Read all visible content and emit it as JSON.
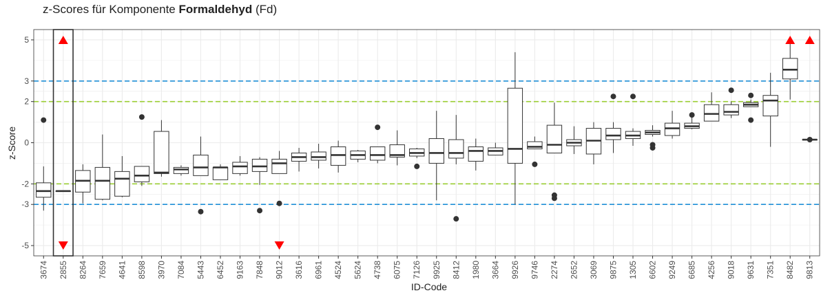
{
  "chart_data": {
    "type": "boxplot",
    "title_prefix": "z-Scores für Komponente ",
    "title_bold": "Formaldehyd",
    "title_suffix": " (Fd)",
    "xlabel": "ID-Code",
    "ylabel": "z-Score",
    "ylim": [
      -5.5,
      5.5
    ],
    "yticks": [
      -5,
      -3,
      -2,
      0,
      2,
      3,
      5
    ],
    "grid": true,
    "reference_lines": [
      {
        "value": 3,
        "color": "#1f8fd6"
      },
      {
        "value": -3,
        "color": "#1f8fd6"
      },
      {
        "value": 2,
        "color": "#9acd32"
      },
      {
        "value": -2,
        "color": "#9acd32"
      }
    ],
    "highlight_category": "2855",
    "colors": {
      "box": "#333333",
      "outlier": "#333333",
      "off_scale_marker": "#ff0000",
      "grid": "#ebebeb",
      "panel_border": "#333333"
    },
    "boxes": [
      {
        "id": "3674",
        "whisker_low": -3.3,
        "q1": -2.65,
        "median": -2.35,
        "q3": -1.95,
        "whisker_high": -1.15,
        "outliers": [
          1.1
        ],
        "off_scale": []
      },
      {
        "id": "2855",
        "whisker_low": -2.35,
        "q1": -2.35,
        "median": -2.35,
        "q3": -2.35,
        "whisker_high": -2.35,
        "outliers": [],
        "off_scale": [
          "up",
          "down"
        ]
      },
      {
        "id": "8264",
        "whisker_low": -2.95,
        "q1": -2.4,
        "median": -1.85,
        "q3": -1.35,
        "whisker_high": -1.05,
        "outliers": [],
        "off_scale": []
      },
      {
        "id": "7659",
        "whisker_low": -2.8,
        "q1": -2.75,
        "median": -1.85,
        "q3": -1.2,
        "whisker_high": 0.4,
        "outliers": [],
        "off_scale": []
      },
      {
        "id": "4641",
        "whisker_low": -2.65,
        "q1": -2.6,
        "median": -1.75,
        "q3": -1.4,
        "whisker_high": -0.65,
        "outliers": [],
        "off_scale": []
      },
      {
        "id": "8598",
        "whisker_low": -2.1,
        "q1": -1.9,
        "median": -1.6,
        "q3": -1.15,
        "whisker_high": -1.15,
        "outliers": [
          1.25
        ],
        "off_scale": []
      },
      {
        "id": "3970",
        "whisker_low": -1.65,
        "q1": -1.5,
        "median": -1.45,
        "q3": 0.55,
        "whisker_high": 1.1,
        "outliers": [],
        "off_scale": []
      },
      {
        "id": "7084",
        "whisker_low": -1.6,
        "q1": -1.5,
        "median": -1.3,
        "q3": -1.2,
        "whisker_high": -1.1,
        "outliers": [],
        "off_scale": []
      },
      {
        "id": "5443",
        "whisker_low": -1.6,
        "q1": -1.6,
        "median": -1.2,
        "q3": -0.6,
        "whisker_high": 0.3,
        "outliers": [
          -3.35
        ],
        "off_scale": []
      },
      {
        "id": "6452",
        "whisker_low": -1.8,
        "q1": -1.8,
        "median": -1.2,
        "q3": -1.2,
        "whisker_high": -1.05,
        "outliers": [],
        "off_scale": []
      },
      {
        "id": "9163",
        "whisker_low": -1.6,
        "q1": -1.5,
        "median": -1.15,
        "q3": -0.95,
        "whisker_high": -0.65,
        "outliers": [],
        "off_scale": []
      },
      {
        "id": "7848",
        "whisker_low": -2.05,
        "q1": -1.4,
        "median": -1.15,
        "q3": -0.8,
        "whisker_high": -0.7,
        "outliers": [
          -3.3
        ],
        "off_scale": []
      },
      {
        "id": "9012",
        "whisker_low": -1.5,
        "q1": -1.5,
        "median": -1.0,
        "q3": -0.8,
        "whisker_high": -0.4,
        "outliers": [
          -2.95
        ],
        "off_scale": [
          "down"
        ]
      },
      {
        "id": "3616",
        "whisker_low": -1.4,
        "q1": -0.9,
        "median": -0.7,
        "q3": -0.5,
        "whisker_high": -0.25,
        "outliers": [],
        "off_scale": []
      },
      {
        "id": "6961",
        "whisker_low": -1.25,
        "q1": -0.85,
        "median": -0.7,
        "q3": -0.45,
        "whisker_high": -0.05,
        "outliers": [],
        "off_scale": []
      },
      {
        "id": "4524",
        "whisker_low": -1.45,
        "q1": -1.1,
        "median": -0.6,
        "q3": -0.2,
        "whisker_high": 0.1,
        "outliers": [],
        "off_scale": []
      },
      {
        "id": "5624",
        "whisker_low": -0.95,
        "q1": -0.8,
        "median": -0.6,
        "q3": -0.4,
        "whisker_high": -0.35,
        "outliers": [],
        "off_scale": []
      },
      {
        "id": "4738",
        "whisker_low": -1.0,
        "q1": -0.85,
        "median": -0.6,
        "q3": -0.2,
        "whisker_high": -0.2,
        "outliers": [
          0.75
        ],
        "off_scale": []
      },
      {
        "id": "6075",
        "whisker_low": -1.1,
        "q1": -0.7,
        "median": -0.6,
        "q3": -0.1,
        "whisker_high": 0.6,
        "outliers": [],
        "off_scale": []
      },
      {
        "id": "7126",
        "whisker_low": -0.75,
        "q1": -0.65,
        "median": -0.5,
        "q3": -0.3,
        "whisker_high": -0.25,
        "outliers": [
          -1.15
        ],
        "off_scale": []
      },
      {
        "id": "9925",
        "whisker_low": -2.8,
        "q1": -1.0,
        "median": -0.5,
        "q3": 0.2,
        "whisker_high": 1.55,
        "outliers": [],
        "off_scale": []
      },
      {
        "id": "8412",
        "whisker_low": -1.05,
        "q1": -0.75,
        "median": -0.5,
        "q3": 0.15,
        "whisker_high": 1.35,
        "outliers": [
          -3.7
        ],
        "off_scale": []
      },
      {
        "id": "1980",
        "whisker_low": -1.35,
        "q1": -0.9,
        "median": -0.4,
        "q3": -0.2,
        "whisker_high": 0.2,
        "outliers": [],
        "off_scale": []
      },
      {
        "id": "3664",
        "whisker_low": -0.6,
        "q1": -0.6,
        "median": -0.4,
        "q3": -0.25,
        "whisker_high": 0.0,
        "outliers": [],
        "off_scale": []
      },
      {
        "id": "9926",
        "whisker_low": -3.0,
        "q1": -1.0,
        "median": -0.3,
        "q3": 2.65,
        "whisker_high": 4.4,
        "outliers": [],
        "off_scale": []
      },
      {
        "id": "9746",
        "whisker_low": -0.3,
        "q1": -0.3,
        "median": -0.2,
        "q3": 0.05,
        "whisker_high": 0.3,
        "outliers": [
          -1.05
        ],
        "off_scale": []
      },
      {
        "id": "2274",
        "whisker_low": -0.5,
        "q1": -0.5,
        "median": -0.1,
        "q3": 0.85,
        "whisker_high": 1.95,
        "outliers": [
          -2.55,
          -2.7
        ],
        "off_scale": []
      },
      {
        "id": "2652",
        "whisker_low": -0.55,
        "q1": -0.15,
        "median": 0.0,
        "q3": 0.15,
        "whisker_high": 0.8,
        "outliers": [],
        "off_scale": []
      },
      {
        "id": "3069",
        "whisker_low": -1.05,
        "q1": -0.55,
        "median": 0.1,
        "q3": 0.7,
        "whisker_high": 1.0,
        "outliers": [],
        "off_scale": []
      },
      {
        "id": "9875",
        "whisker_low": -0.5,
        "q1": 0.15,
        "median": 0.35,
        "q3": 0.7,
        "whisker_high": 1.0,
        "outliers": [
          2.25
        ],
        "off_scale": []
      },
      {
        "id": "1305",
        "whisker_low": -0.15,
        "q1": 0.2,
        "median": 0.35,
        "q3": 0.55,
        "whisker_high": 0.7,
        "outliers": [
          2.25
        ],
        "off_scale": []
      },
      {
        "id": "6602",
        "whisker_low": 0.3,
        "q1": 0.4,
        "median": 0.5,
        "q3": 0.6,
        "whisker_high": 0.85,
        "outliers": [
          -0.1,
          -0.25
        ],
        "off_scale": []
      },
      {
        "id": "9249",
        "whisker_low": 0.2,
        "q1": 0.35,
        "median": 0.7,
        "q3": 0.95,
        "whisker_high": 1.55,
        "outliers": [],
        "off_scale": []
      },
      {
        "id": "6685",
        "whisker_low": 0.65,
        "q1": 0.7,
        "median": 0.8,
        "q3": 0.95,
        "whisker_high": 1.35,
        "outliers": [
          1.35
        ],
        "off_scale": []
      },
      {
        "id": "4256",
        "whisker_low": 1.05,
        "q1": 1.05,
        "median": 1.4,
        "q3": 1.85,
        "whisker_high": 2.45,
        "outliers": [],
        "off_scale": []
      },
      {
        "id": "9018",
        "whisker_low": 1.2,
        "q1": 1.35,
        "median": 1.5,
        "q3": 1.85,
        "whisker_high": 2.0,
        "outliers": [
          2.55
        ],
        "off_scale": []
      },
      {
        "id": "9631",
        "whisker_low": 1.75,
        "q1": 1.75,
        "median": 1.85,
        "q3": 1.95,
        "whisker_high": 2.1,
        "outliers": [
          2.3,
          1.1
        ],
        "off_scale": []
      },
      {
        "id": "7351",
        "whisker_low": -0.2,
        "q1": 1.3,
        "median": 2.05,
        "q3": 2.3,
        "whisker_high": 3.4,
        "outliers": [],
        "off_scale": []
      },
      {
        "id": "8482",
        "whisker_low": 2.1,
        "q1": 3.1,
        "median": 3.55,
        "q3": 4.1,
        "whisker_high": 4.8,
        "outliers": [],
        "off_scale": [
          "up"
        ]
      },
      {
        "id": "9813",
        "whisker_low": 0.15,
        "q1": 0.15,
        "median": 0.15,
        "q3": 0.15,
        "whisker_high": 0.15,
        "outliers": [
          0.15
        ],
        "off_scale": [
          "up"
        ]
      }
    ]
  }
}
